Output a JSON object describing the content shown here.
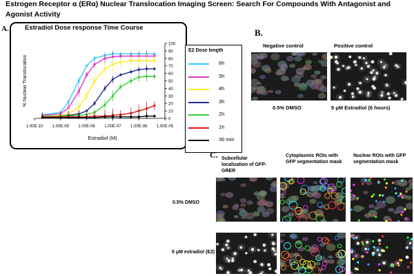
{
  "title": "Estrogen Receptor α (ERα) Nuclear Translocation Imaging Screen: Search For Compounds With  Antagonist and Agonist Activity",
  "panels": {
    "a": "A.",
    "b": "B.",
    "c": "C."
  },
  "chart_data": {
    "type": "line",
    "title": "Estradiol Dose response Time Course",
    "xlabel": "Estradiol (M)",
    "ylabel": "% Nuclear Translocation",
    "xscale": "log",
    "xlim": [
      1e-10,
      1e-05
    ],
    "ylim": [
      0,
      100
    ],
    "x_ticks": [
      "1.00E-10",
      "1.00E-09",
      "1.00E-08",
      "1.00E-07",
      "1.00E-06",
      "1.00E-05"
    ],
    "y_ticks": [
      "0",
      "10",
      "20",
      "30",
      "40",
      "50",
      "60",
      "70",
      "80",
      "90",
      "100"
    ],
    "legend_title": "E2 Dose length",
    "legend_position": "right",
    "x": [
      2e-10,
      1e-09,
      2e-09,
      5e-09,
      1e-08,
      2e-08,
      5e-08,
      1e-07,
      2e-07,
      5e-07,
      1e-06,
      2e-06,
      4e-06
    ],
    "series": [
      {
        "name": "6h",
        "color": "#33ccff",
        "values": [
          5,
          8,
          22,
          50,
          70,
          80,
          84,
          86,
          86,
          86,
          86,
          86,
          86
        ]
      },
      {
        "name": "5h",
        "color": "#e033c8",
        "values": [
          4,
          6,
          14,
          36,
          58,
          72,
          80,
          82,
          83,
          83,
          83,
          83,
          83
        ]
      },
      {
        "name": "4h",
        "color": "#ffee22",
        "values": [
          3,
          4,
          6,
          15,
          30,
          50,
          66,
          72,
          75,
          77,
          77,
          77,
          77
        ]
      },
      {
        "name": "3h",
        "color": "#1e2a88",
        "values": [
          3,
          3,
          4,
          6,
          10,
          20,
          40,
          52,
          58,
          62,
          65,
          66,
          66
        ]
      },
      {
        "name": "2h",
        "color": "#33cc33",
        "values": [
          3,
          3,
          3,
          4,
          5,
          8,
          18,
          30,
          42,
          50,
          55,
          56,
          56
        ]
      },
      {
        "name": "1h",
        "color": "#dd1111",
        "values": [
          2,
          2,
          2,
          2,
          2,
          3,
          3,
          4,
          5,
          7,
          10,
          13,
          17
        ]
      },
      {
        "name": "30 min",
        "color": "#000000",
        "values": [
          1,
          1,
          1,
          1,
          1,
          1,
          2,
          2,
          2,
          2,
          2,
          3,
          3
        ]
      }
    ]
  },
  "panel_b": {
    "negative_label": "Negative control",
    "positive_label": "Positive control",
    "negative_caption": "0.5% DMSO",
    "positive_caption": "5 μM Estradiol (6 hours)"
  },
  "panel_c": {
    "col1": "Subcellular localization of GFP-GRER",
    "col2": "Cytoplasmic ROIs with GFP segmentation mask",
    "col3": "Nuclear ROIs with GFP segmentation mask",
    "row1": "0.5% DMSO",
    "row2": "5 μM  estradiol (E2)"
  }
}
